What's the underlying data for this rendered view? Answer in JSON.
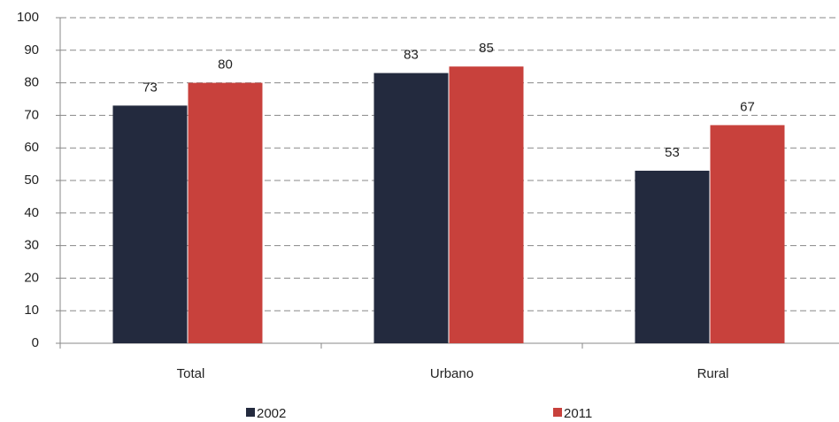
{
  "chart_data": {
    "type": "bar",
    "categories": [
      "Total",
      "Urbano",
      "Rural"
    ],
    "series": [
      {
        "name": "2002",
        "color": "#232a3e",
        "values": [
          73,
          83,
          53
        ]
      },
      {
        "name": "2011",
        "color": "#c8413c",
        "values": [
          80,
          85,
          67
        ]
      }
    ],
    "ylim": [
      0,
      100
    ],
    "yticks": [
      0,
      10,
      20,
      30,
      40,
      50,
      60,
      70,
      80,
      90,
      100
    ],
    "grid": true,
    "legend": "bottom"
  }
}
